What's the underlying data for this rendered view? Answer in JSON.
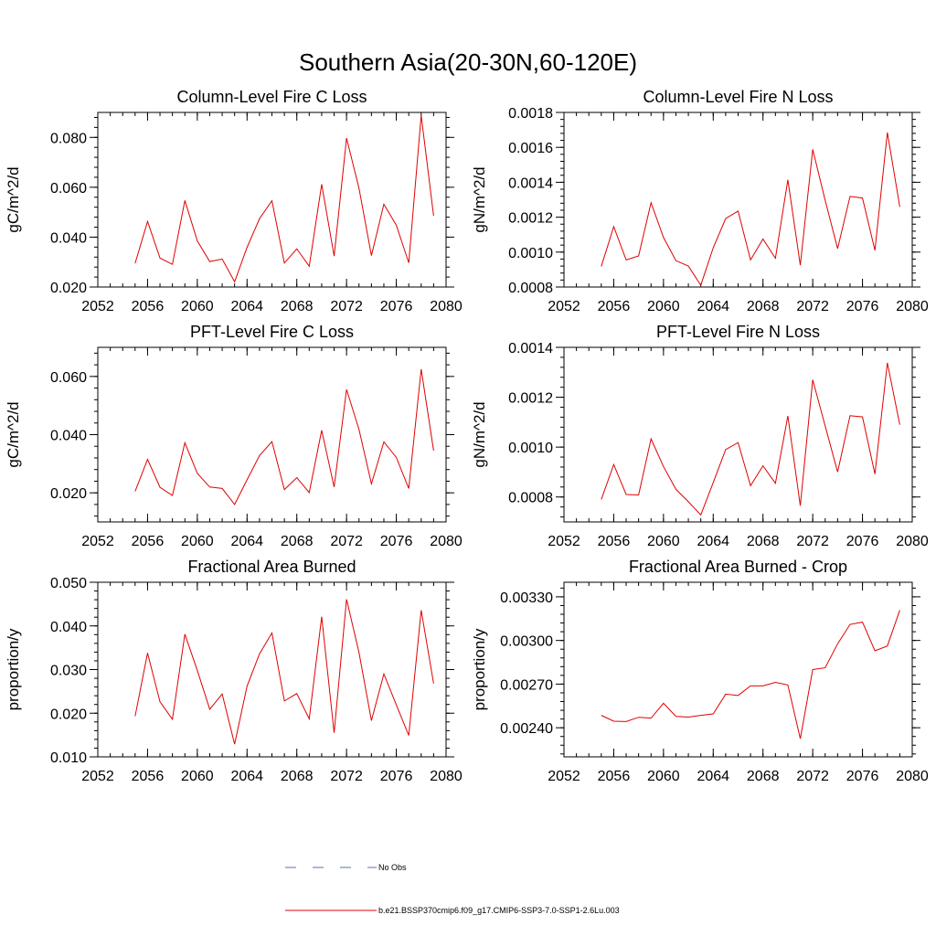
{
  "page": {
    "title": "Southern Asia(20-30N,60-120E)",
    "legend": [
      {
        "label": "No Obs",
        "style": "dashed",
        "color": "#5a6fa8"
      },
      {
        "label": "b.e21.BSSP370cmip6.f09_g17.CMIP6-SSP3-7.0-SSP1-2.6Lu.003",
        "style": "solid",
        "color": "#e00000"
      }
    ]
  },
  "chart_data": [
    {
      "type": "line",
      "title": "Column-Level Fire C Loss",
      "ylabel": "gC/m^2/d",
      "xlim": [
        2052,
        2080
      ],
      "ylim": [
        0.02,
        0.09
      ],
      "xticks": [
        2052,
        2056,
        2060,
        2064,
        2068,
        2072,
        2076,
        2080
      ],
      "xtick_labels": [
        "2052",
        "2056",
        "2060",
        "2064",
        "2068",
        "2072",
        "2076",
        "2080"
      ],
      "yticks": [
        0.02,
        0.04,
        0.06,
        0.08
      ],
      "ytick_labels": [
        "0.020",
        "0.040",
        "0.060",
        "0.080"
      ],
      "x": [
        2055,
        2056,
        2057,
        2058,
        2059,
        2060,
        2061,
        2062,
        2063,
        2064,
        2065,
        2066,
        2067,
        2068,
        2069,
        2070,
        2071,
        2072,
        2073,
        2074,
        2075,
        2076,
        2077,
        2078,
        2079
      ],
      "series": [
        {
          "color": "#e00000",
          "values": [
            0.0295,
            0.0463,
            0.0316,
            0.0291,
            0.0547,
            0.0385,
            0.0302,
            0.0312,
            0.0221,
            0.0359,
            0.0474,
            0.0546,
            0.0296,
            0.0353,
            0.0283,
            0.0612,
            0.0324,
            0.0797,
            0.0596,
            0.0326,
            0.0532,
            0.0448,
            0.0297,
            0.0888,
            0.0485
          ]
        }
      ]
    },
    {
      "type": "line",
      "title": "Column-Level Fire N Loss",
      "ylabel": "gN/m^2/d",
      "xlim": [
        2052,
        2080
      ],
      "ylim": [
        0.0008,
        0.0018
      ],
      "xticks": [
        2052,
        2056,
        2060,
        2064,
        2068,
        2072,
        2076,
        2080
      ],
      "xtick_labels": [
        "2052",
        "2056",
        "2060",
        "2064",
        "2068",
        "2072",
        "2076",
        "2080"
      ],
      "yticks": [
        0.0008,
        0.001,
        0.0012,
        0.0014,
        0.0016,
        0.0018
      ],
      "ytick_labels": [
        "0.0008",
        "0.0010",
        "0.0012",
        "0.0014",
        "0.0016",
        "0.0018"
      ],
      "x": [
        2055,
        2056,
        2057,
        2058,
        2059,
        2060,
        2061,
        2062,
        2063,
        2064,
        2065,
        2066,
        2067,
        2068,
        2069,
        2070,
        2071,
        2072,
        2073,
        2074,
        2075,
        2076,
        2077,
        2078,
        2079
      ],
      "series": [
        {
          "color": "#e00000",
          "values": [
            0.000918,
            0.001146,
            0.000955,
            0.000978,
            0.001283,
            0.001084,
            0.000951,
            0.00092,
            0.00081,
            0.001025,
            0.001192,
            0.001235,
            0.000955,
            0.001075,
            0.000965,
            0.001414,
            0.000925,
            0.001588,
            0.001297,
            0.00102,
            0.001319,
            0.00131,
            0.00101,
            0.001685,
            0.001259
          ]
        }
      ]
    },
    {
      "type": "line",
      "title": "PFT-Level Fire C Loss",
      "ylabel": "gC/m^2/d",
      "xlim": [
        2052,
        2080
      ],
      "ylim": [
        0.01,
        0.07
      ],
      "xticks": [
        2052,
        2056,
        2060,
        2064,
        2068,
        2072,
        2076,
        2080
      ],
      "xtick_labels": [
        "2052",
        "2056",
        "2060",
        "2064",
        "2068",
        "2072",
        "2076",
        "2080"
      ],
      "yticks": [
        0.02,
        0.04,
        0.06
      ],
      "ytick_labels": [
        "0.020",
        "0.040",
        "0.060"
      ],
      "x": [
        2055,
        2056,
        2057,
        2058,
        2059,
        2060,
        2061,
        2062,
        2063,
        2064,
        2065,
        2066,
        2067,
        2068,
        2069,
        2070,
        2071,
        2072,
        2073,
        2074,
        2075,
        2076,
        2077,
        2078,
        2079
      ],
      "series": [
        {
          "color": "#e00000",
          "values": [
            0.0205,
            0.0315,
            0.0219,
            0.0191,
            0.0372,
            0.0267,
            0.022,
            0.0215,
            0.016,
            0.0245,
            0.0328,
            0.0376,
            0.0211,
            0.0252,
            0.0201,
            0.0415,
            0.022,
            0.0555,
            0.0418,
            0.0231,
            0.0375,
            0.0322,
            0.0215,
            0.0625,
            0.0345
          ]
        }
      ]
    },
    {
      "type": "line",
      "title": "PFT-Level Fire N Loss",
      "ylabel": "gN/m^2/d",
      "xlim": [
        2052,
        2080
      ],
      "ylim": [
        0.0007,
        0.0014
      ],
      "xticks": [
        2052,
        2056,
        2060,
        2064,
        2068,
        2072,
        2076,
        2080
      ],
      "xtick_labels": [
        "2052",
        "2056",
        "2060",
        "2064",
        "2068",
        "2072",
        "2076",
        "2080"
      ],
      "yticks": [
        0.0008,
        0.001,
        0.0012,
        0.0014
      ],
      "ytick_labels": [
        "0.0008",
        "0.0010",
        "0.0012",
        "0.0014"
      ],
      "x": [
        2055,
        2056,
        2057,
        2058,
        2059,
        2060,
        2061,
        2062,
        2063,
        2064,
        2065,
        2066,
        2067,
        2068,
        2069,
        2070,
        2071,
        2072,
        2073,
        2074,
        2075,
        2076,
        2077,
        2078,
        2079
      ],
      "series": [
        {
          "color": "#e00000",
          "values": [
            0.00079,
            0.00093,
            0.00081,
            0.000808,
            0.001033,
            0.000922,
            0.000831,
            0.000781,
            0.000728,
            0.000858,
            0.00099,
            0.001018,
            0.000845,
            0.000925,
            0.000855,
            0.001125,
            0.000765,
            0.00127,
            0.001085,
            0.0009,
            0.001126,
            0.001121,
            0.000892,
            0.001338,
            0.00109
          ]
        }
      ]
    },
    {
      "type": "line",
      "title": "Fractional Area Burned",
      "ylabel": "proportion/y",
      "xlim": [
        2052,
        2080
      ],
      "ylim": [
        0.01,
        0.05
      ],
      "xticks": [
        2052,
        2056,
        2060,
        2064,
        2068,
        2072,
        2076,
        2080
      ],
      "xtick_labels": [
        "2052",
        "2056",
        "2060",
        "2064",
        "2068",
        "2072",
        "2076",
        "2080"
      ],
      "yticks": [
        0.01,
        0.02,
        0.03,
        0.04,
        0.05
      ],
      "ytick_labels": [
        "0.010",
        "0.020",
        "0.030",
        "0.040",
        "0.050"
      ],
      "x": [
        2055,
        2056,
        2057,
        2058,
        2059,
        2060,
        2061,
        2062,
        2063,
        2064,
        2065,
        2066,
        2067,
        2068,
        2069,
        2070,
        2071,
        2072,
        2073,
        2074,
        2075,
        2076,
        2077,
        2078,
        2079
      ],
      "series": [
        {
          "color": "#e00000",
          "values": [
            0.0193,
            0.0338,
            0.0226,
            0.0186,
            0.0381,
            0.0298,
            0.0209,
            0.0244,
            0.0129,
            0.0262,
            0.0336,
            0.0384,
            0.0228,
            0.0245,
            0.0187,
            0.0421,
            0.0155,
            0.0461,
            0.0339,
            0.0183,
            0.029,
            0.0219,
            0.0149,
            0.0436,
            0.0268
          ]
        }
      ]
    },
    {
      "type": "line",
      "title": "Fractional Area Burned - Crop",
      "ylabel": "proportion/y",
      "xlim": [
        2052,
        2080
      ],
      "ylim": [
        0.0022,
        0.0034
      ],
      "xticks": [
        2052,
        2056,
        2060,
        2064,
        2068,
        2072,
        2076,
        2080
      ],
      "xtick_labels": [
        "2052",
        "2056",
        "2060",
        "2064",
        "2068",
        "2072",
        "2076",
        "2080"
      ],
      "yticks": [
        0.0024,
        0.0027,
        0.003,
        0.0033
      ],
      "ytick_labels": [
        "0.00240",
        "0.00270",
        "0.00300",
        "0.00330"
      ],
      "x": [
        2055,
        2056,
        2057,
        2058,
        2059,
        2060,
        2061,
        2062,
        2063,
        2064,
        2065,
        2066,
        2067,
        2068,
        2069,
        2070,
        2071,
        2072,
        2073,
        2074,
        2075,
        2076,
        2077,
        2078,
        2079
      ],
      "series": [
        {
          "color": "#e00000",
          "values": [
            0.002485,
            0.002445,
            0.002443,
            0.002472,
            0.002466,
            0.002568,
            0.002478,
            0.002473,
            0.002485,
            0.002495,
            0.002631,
            0.002622,
            0.002688,
            0.002688,
            0.002712,
            0.002694,
            0.002325,
            0.0028,
            0.002812,
            0.002977,
            0.00311,
            0.003126,
            0.002929,
            0.002962,
            0.003208
          ]
        }
      ]
    }
  ]
}
